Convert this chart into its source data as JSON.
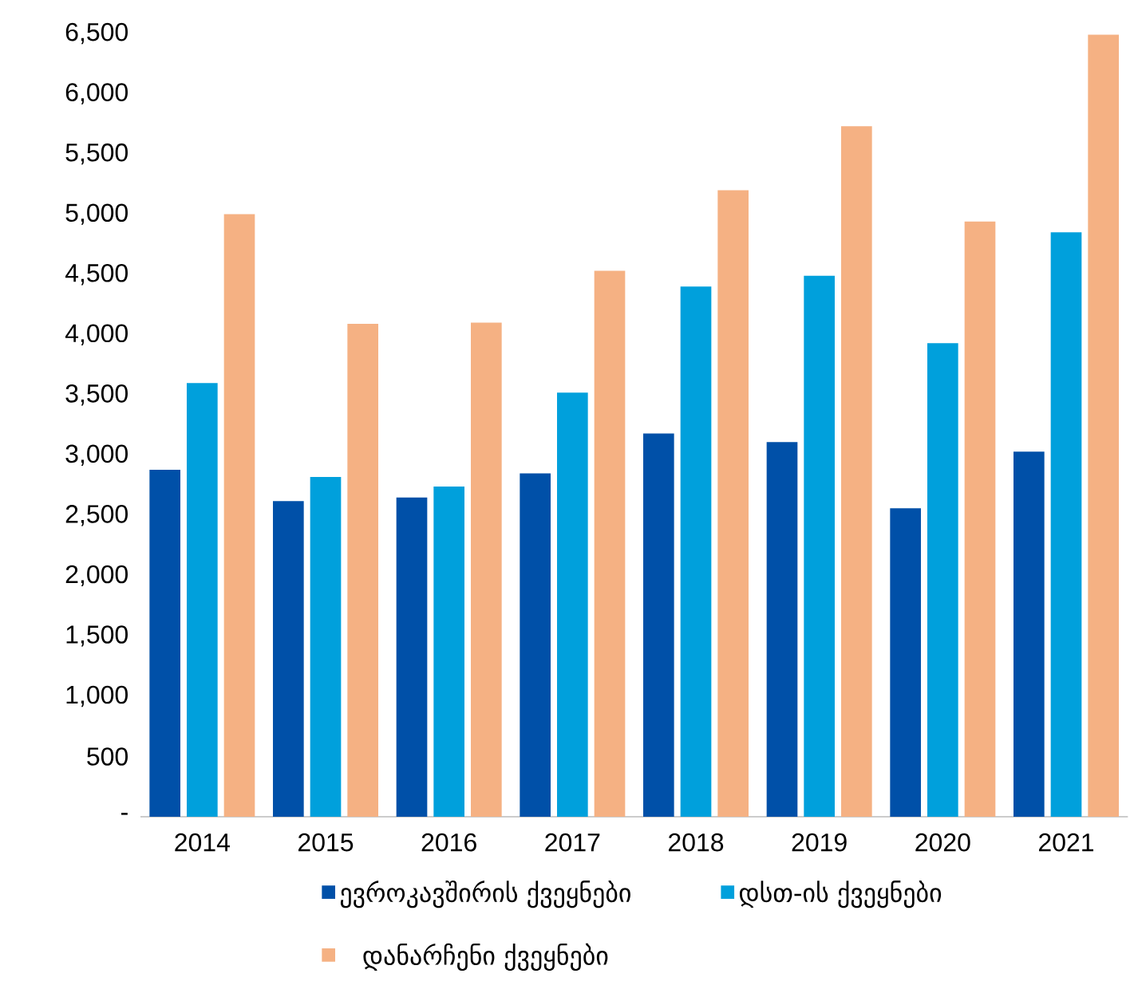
{
  "chart_data": {
    "type": "bar",
    "categories": [
      "2014",
      "2015",
      "2016",
      "2017",
      "2018",
      "2019",
      "2020",
      "2021"
    ],
    "series": [
      {
        "name": "ევროკავშირის ქვეყნები",
        "color": "#0050a8",
        "values": [
          2880,
          2620,
          2650,
          2850,
          3180,
          3110,
          2560,
          3030
        ]
      },
      {
        "name": "დსთ-ის ქვეყნები",
        "color": "#00a0dc",
        "values": [
          3600,
          2820,
          2740,
          3520,
          4400,
          4490,
          3930,
          4850
        ]
      },
      {
        "name": "დანარჩენი ქვეყნები",
        "color": "#f5b183",
        "values": [
          5000,
          4090,
          4100,
          4530,
          5200,
          5730,
          4940,
          6490
        ]
      }
    ],
    "ylim": [
      0,
      6500
    ],
    "yticks": [
      {
        "value": 0,
        "label": "-"
      },
      {
        "value": 500,
        "label": "500"
      },
      {
        "value": 1000,
        "label": "1,000"
      },
      {
        "value": 1500,
        "label": "1,500"
      },
      {
        "value": 2000,
        "label": "2,000"
      },
      {
        "value": 2500,
        "label": "2,500"
      },
      {
        "value": 3000,
        "label": "3,000"
      },
      {
        "value": 3500,
        "label": "3,500"
      },
      {
        "value": 4000,
        "label": "4,000"
      },
      {
        "value": 4500,
        "label": "4,500"
      },
      {
        "value": 5000,
        "label": "5,000"
      },
      {
        "value": 5500,
        "label": "5,500"
      },
      {
        "value": 6000,
        "label": "6,000"
      },
      {
        "value": 6500,
        "label": "6,500"
      }
    ],
    "legend": "bottom"
  }
}
